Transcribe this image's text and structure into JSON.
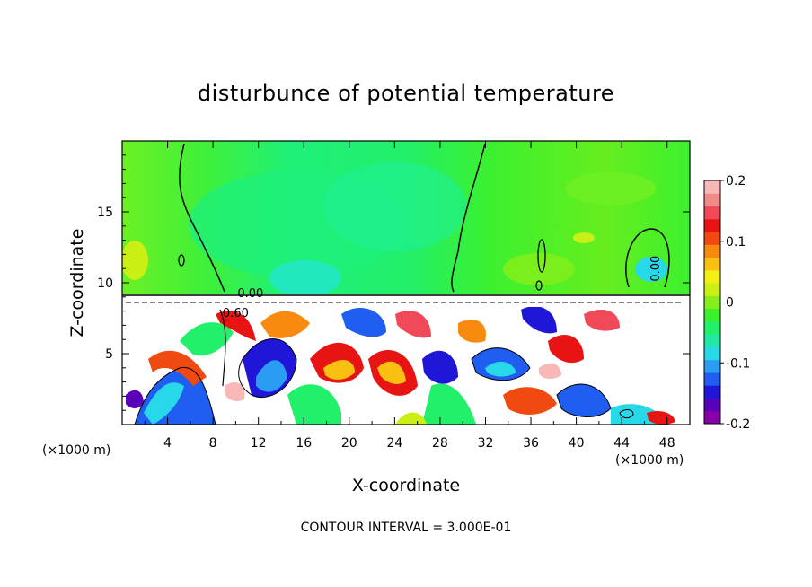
{
  "chart_data": {
    "type": "heatmap",
    "title": "disturbunce of potential temperature",
    "xlabel": "X-coordinate",
    "ylabel": "Z-coordinate",
    "x_unit": "(×1000 m)",
    "x_unit_right": "(×1000 m)",
    "xlim": [
      0,
      50
    ],
    "ylim": [
      0,
      20
    ],
    "x_ticks": [
      4,
      8,
      12,
      16,
      20,
      24,
      28,
      32,
      36,
      40,
      44,
      48
    ],
    "y_ticks": [
      5,
      10,
      15
    ],
    "colorbar": {
      "range": [
        -0.2,
        0.2
      ],
      "tick_labels": [
        "0.2",
        "0.1",
        "0",
        "-0.1",
        "-0.2"
      ],
      "tick_values": [
        0.2,
        0.1,
        0,
        -0.1,
        -0.2
      ],
      "colors": [
        "#8a00a8",
        "#5a00b8",
        "#1f16d8",
        "#1f5ef0",
        "#2a9cf2",
        "#27d8e8",
        "#22e8a6",
        "#22ef6a",
        "#3cf02e",
        "#86ee1c",
        "#c9ef14",
        "#f3ef14",
        "#f8c010",
        "#f88a10",
        "#f04a10",
        "#e81414",
        "#f04a5a",
        "#f28a8a",
        "#f8b8b8"
      ]
    },
    "contour_labels": [
      {
        "text": "0.00",
        "x": 11.3,
        "z": 9.0
      },
      {
        "text": "0.00",
        "x": 47.3,
        "z": 11.0
      },
      {
        "text": "0.60",
        "x": 10.0,
        "z": 7.6
      }
    ],
    "footer": "CONTOUR INTERVAL = 3.000E-01",
    "grid": false
  }
}
